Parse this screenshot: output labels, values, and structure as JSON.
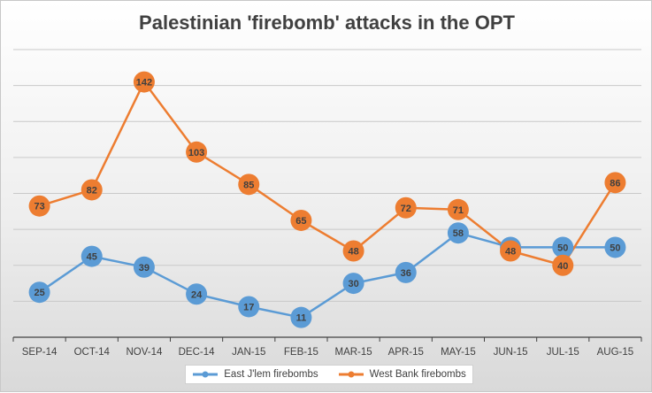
{
  "chart_data": {
    "type": "line",
    "title": "Palestinian 'firebomb' attacks in the OPT",
    "categories": [
      "SEP-14",
      "OCT-14",
      "NOV-14",
      "DEC-14",
      "JAN-15",
      "FEB-15",
      "MAR-15",
      "APR-15",
      "MAY-15",
      "JUN-15",
      "JUL-15",
      "AUG-15"
    ],
    "series": [
      {
        "name": "East J'lem firebombs",
        "color": "#5b9bd5",
        "values": [
          25,
          45,
          39,
          24,
          17,
          11,
          30,
          36,
          58,
          50,
          50,
          50
        ]
      },
      {
        "name": "West Bank firebombs",
        "color": "#ed7d31",
        "values": [
          73,
          82,
          142,
          103,
          85,
          65,
          48,
          72,
          71,
          48,
          40,
          86
        ]
      }
    ],
    "xlabel": "",
    "ylabel": "",
    "ylim": [
      0,
      160
    ],
    "grid": true,
    "legend_position": "bottom"
  }
}
